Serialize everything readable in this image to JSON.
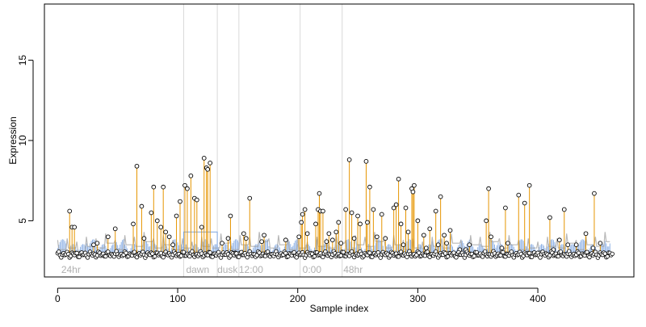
{
  "chart_data": {
    "type": "scatter",
    "title": "",
    "xlabel": "Sample index",
    "ylabel": "Expression",
    "xlim": [
      -11,
      480
    ],
    "ylim": [
      1.5,
      18.5
    ],
    "x_ticks": [
      0,
      100,
      200,
      300,
      400
    ],
    "y_ticks": [
      5,
      10,
      15
    ],
    "grid": false,
    "segment_boundaries": [
      105,
      133,
      151,
      202,
      237
    ],
    "segment_labels": [
      {
        "x": 3,
        "text": "24hr"
      },
      {
        "x": 107,
        "text": "dawn"
      },
      {
        "x": 133,
        "text": "dusk"
      },
      {
        "x": 151,
        "text": "12:00"
      },
      {
        "x": 204,
        "text": "0:00"
      },
      {
        "x": 238,
        "text": "48hr"
      }
    ],
    "baseline": 2.9,
    "colors": {
      "stem": "#e69500",
      "blue_line": "#7ea6e0",
      "grey_line": "#a0a0a0",
      "point_stroke": "#000000",
      "divider": "#d9d9d9",
      "segment_label": "#b0b0b0"
    },
    "highlight_points": [
      [
        10,
        5.6
      ],
      [
        12,
        4.6
      ],
      [
        14,
        4.6
      ],
      [
        30,
        3.5
      ],
      [
        33,
        3.6
      ],
      [
        42,
        4.0
      ],
      [
        48,
        4.5
      ],
      [
        63,
        4.8
      ],
      [
        66,
        8.4
      ],
      [
        70,
        5.9
      ],
      [
        72,
        3.9
      ],
      [
        78,
        5.5
      ],
      [
        80,
        7.1
      ],
      [
        83,
        5.0
      ],
      [
        86,
        4.6
      ],
      [
        88,
        7.1
      ],
      [
        90,
        4.3
      ],
      [
        93,
        4.0
      ],
      [
        96,
        3.5
      ],
      [
        99,
        5.3
      ],
      [
        102,
        6.2
      ],
      [
        106,
        7.2
      ],
      [
        108,
        7.0
      ],
      [
        111,
        7.8
      ],
      [
        114,
        6.4
      ],
      [
        116,
        6.3
      ],
      [
        120,
        4.6
      ],
      [
        122,
        8.9
      ],
      [
        124,
        8.3
      ],
      [
        125,
        8.2
      ],
      [
        127,
        8.6
      ],
      [
        137,
        3.6
      ],
      [
        142,
        3.9
      ],
      [
        144,
        5.3
      ],
      [
        148,
        3.0
      ],
      [
        155,
        4.2
      ],
      [
        157,
        3.9
      ],
      [
        160,
        6.4
      ],
      [
        170,
        3.7
      ],
      [
        172,
        4.1
      ],
      [
        190,
        3.8
      ],
      [
        201,
        4.0
      ],
      [
        203,
        4.9
      ],
      [
        204,
        5.4
      ],
      [
        206,
        5.7
      ],
      [
        208,
        4.2
      ],
      [
        215,
        4.8
      ],
      [
        217,
        5.7
      ],
      [
        218,
        6.7
      ],
      [
        219,
        5.6
      ],
      [
        221,
        5.6
      ],
      [
        224,
        3.7
      ],
      [
        226,
        4.2
      ],
      [
        229,
        3.8
      ],
      [
        232,
        4.3
      ],
      [
        234,
        4.9
      ],
      [
        236,
        3.6
      ],
      [
        240,
        5.7
      ],
      [
        243,
        8.8
      ],
      [
        245,
        5.5
      ],
      [
        247,
        3.9
      ],
      [
        250,
        5.3
      ],
      [
        252,
        4.8
      ],
      [
        257,
        8.7
      ],
      [
        258,
        4.9
      ],
      [
        260,
        7.1
      ],
      [
        263,
        5.7
      ],
      [
        266,
        4.0
      ],
      [
        270,
        5.4
      ],
      [
        273,
        3.9
      ],
      [
        280,
        5.8
      ],
      [
        282,
        6.0
      ],
      [
        284,
        7.6
      ],
      [
        286,
        4.8
      ],
      [
        288,
        3.5
      ],
      [
        290,
        5.8
      ],
      [
        292,
        4.3
      ],
      [
        295,
        7.0
      ],
      [
        296,
        6.8
      ],
      [
        297,
        7.2
      ],
      [
        300,
        5.0
      ],
      [
        305,
        4.1
      ],
      [
        307,
        3.3
      ],
      [
        310,
        4.5
      ],
      [
        315,
        5.6
      ],
      [
        317,
        3.5
      ],
      [
        319,
        6.5
      ],
      [
        322,
        4.1
      ],
      [
        324,
        3.6
      ],
      [
        327,
        4.4
      ],
      [
        335,
        3.2
      ],
      [
        340,
        3.2
      ],
      [
        343,
        3.5
      ],
      [
        357,
        5.0
      ],
      [
        359,
        7.0
      ],
      [
        361,
        4.0
      ],
      [
        370,
        3.3
      ],
      [
        373,
        5.8
      ],
      [
        375,
        3.6
      ],
      [
        384,
        6.6
      ],
      [
        389,
        6.1
      ],
      [
        393,
        7.2
      ],
      [
        402,
        3.0
      ],
      [
        410,
        5.2
      ],
      [
        413,
        3.2
      ],
      [
        418,
        3.8
      ],
      [
        422,
        5.7
      ],
      [
        425,
        3.5
      ],
      [
        432,
        3.5
      ],
      [
        440,
        4.2
      ],
      [
        446,
        3.3
      ],
      [
        447,
        6.7
      ],
      [
        452,
        3.6
      ]
    ]
  }
}
